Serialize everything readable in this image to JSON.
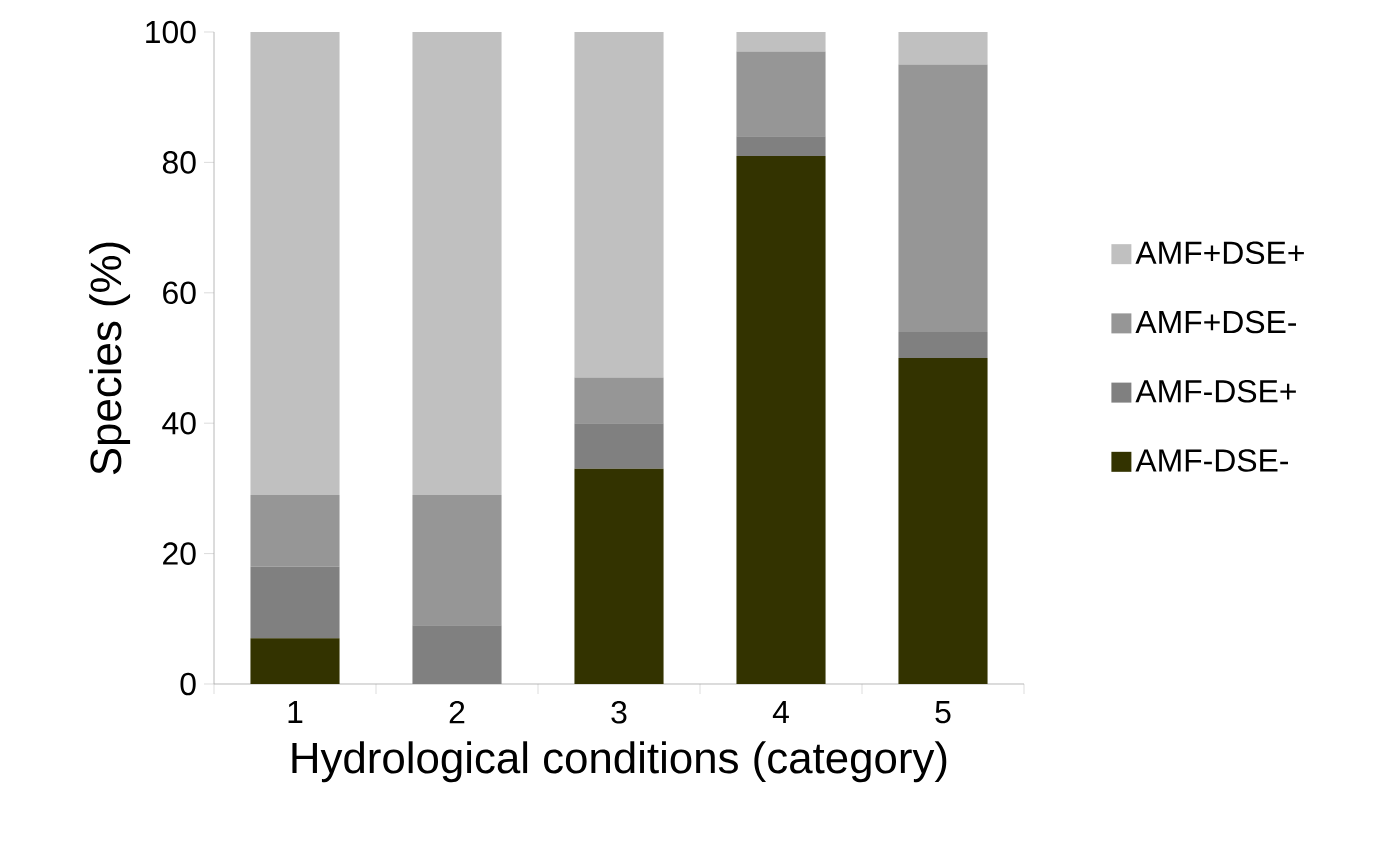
{
  "chart_data": {
    "type": "bar",
    "stacked": true,
    "xlabel": "Hydrological conditions (category)",
    "ylabel": "Species (%)",
    "categories": [
      "1",
      "2",
      "3",
      "4",
      "5"
    ],
    "series": [
      {
        "name": "AMF-DSE-",
        "color": "#333300",
        "values": [
          7,
          0,
          33,
          81,
          50
        ]
      },
      {
        "name": "AMF-DSE+",
        "color": "#808080",
        "values": [
          11,
          9,
          7,
          3,
          4
        ]
      },
      {
        "name": "AMF+DSE-",
        "color": "#969696",
        "values": [
          11,
          20,
          7,
          13,
          41
        ]
      },
      {
        "name": "AMF+DSE+",
        "color": "#c0c0c0",
        "values": [
          71,
          71,
          53,
          3,
          5
        ]
      }
    ],
    "ylim": [
      0,
      100
    ],
    "yticks": [
      0,
      20,
      40,
      60,
      80,
      100
    ],
    "legend": "right"
  }
}
